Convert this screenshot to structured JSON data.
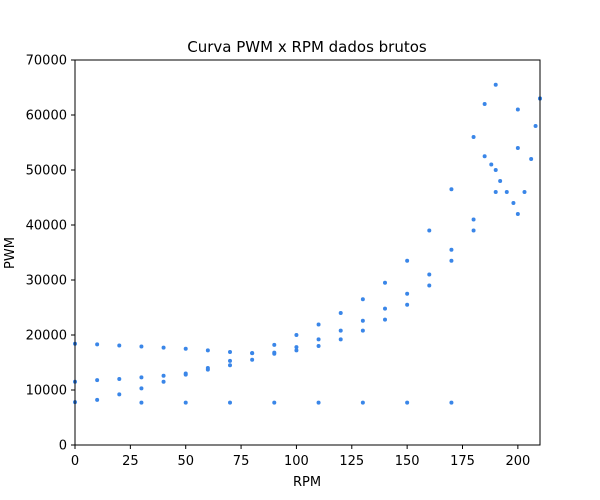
{
  "chart_data": {
    "type": "scatter",
    "title": "Curva PWM x RPM dados brutos",
    "xlabel": "RPM",
    "ylabel": "PWM",
    "xlim": [
      0,
      210
    ],
    "ylim": [
      0,
      70000
    ],
    "x_ticks": [
      0,
      25,
      50,
      75,
      100,
      125,
      150,
      175,
      200
    ],
    "y_ticks": [
      0,
      10000,
      20000,
      30000,
      40000,
      50000,
      60000,
      70000
    ],
    "grid": false,
    "legend": "none",
    "point_color": "#3a86e8",
    "series": [
      {
        "traces": [
          {
            "x": [
              0,
              10,
              20,
              30,
              40,
              50,
              60,
              70,
              80,
              90,
              100,
              110,
              120,
              130,
              140,
              150,
              160,
              170,
              180,
              185,
              190
            ],
            "y": [
              7800,
              8200,
              9200,
              10300,
              11500,
              12800,
              14000,
              15300,
              16700,
              18200,
              20000,
              21900,
              24000,
              26500,
              29500,
              33500,
              39000,
              46500,
              56000,
              62000,
              65500
            ]
          },
          {
            "x": [
              0,
              10,
              20,
              30,
              40,
              50,
              60,
              70,
              80,
              90,
              100,
              110,
              120,
              130,
              140,
              150,
              160,
              170,
              180,
              190,
              200
            ],
            "y": [
              11500,
              11800,
              12000,
              12300,
              12600,
              13000,
              13700,
              14500,
              15500,
              16600,
              17800,
              19200,
              20800,
              22600,
              24800,
              27500,
              31000,
              35500,
              41000,
              50000,
              61000
            ]
          },
          {
            "x": [
              0,
              10,
              20,
              30,
              40,
              50,
              60,
              70,
              80,
              90,
              100,
              110,
              120,
              130,
              140,
              150,
              160,
              170,
              180,
              190,
              200,
              210
            ],
            "y": [
              18400,
              18300,
              18100,
              17900,
              17700,
              17500,
              17200,
              16900,
              16700,
              16800,
              17200,
              18000,
              19200,
              20800,
              22800,
              25500,
              29000,
              33500,
              39000,
              46000,
              54000,
              63000
            ]
          },
          {
            "x": [
              185,
              188,
              192,
              195,
              198,
              200,
              203,
              206,
              208,
              210
            ],
            "y": [
              52500,
              51000,
              48000,
              46000,
              44000,
              42000,
              46000,
              52000,
              58000,
              63000
            ]
          },
          {
            "x": [
              30,
              50,
              70,
              90,
              110,
              130,
              150,
              170
            ],
            "y": [
              7700,
              7700,
              7700,
              7700,
              7700,
              7700,
              7700,
              7700
            ]
          }
        ]
      }
    ]
  }
}
